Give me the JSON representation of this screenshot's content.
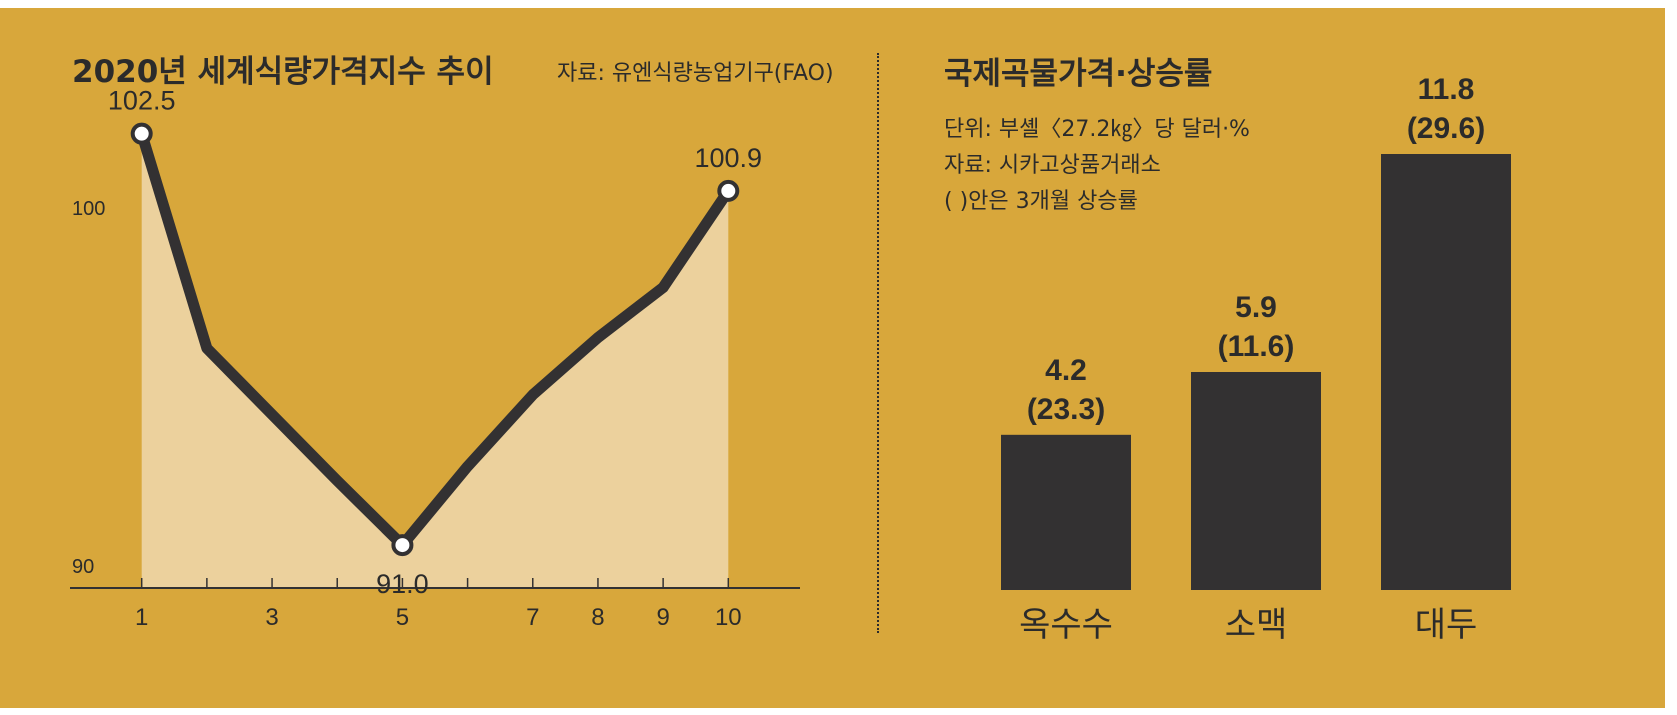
{
  "left_chart": {
    "title": "2020년 세계식량가격지수 추이",
    "source": "자료: 유엔식량농업기구(FAO)"
  },
  "right_chart": {
    "title": "국제곡물가격·상승률",
    "note_unit": "단위: 부셸〈27.2㎏〉당 달러·%",
    "note_source": "자료: 시카고상품거래소",
    "note_paren": "(   )안은 3개월 상승률"
  },
  "colors": {
    "background": "#d8a73b",
    "area_fill": "#ecd19d",
    "line": "#333132",
    "bar": "#333132",
    "text": "#2b2b2b"
  },
  "chart_data": [
    {
      "type": "line",
      "title": "2020년 세계식량가격지수 추이",
      "x": [
        1,
        2,
        4,
        5,
        6,
        7,
        8,
        9,
        10
      ],
      "y": [
        102.5,
        96.5,
        92.8,
        91.0,
        93.2,
        95.2,
        96.8,
        98.2,
        100.9
      ],
      "x_ticks": [
        1,
        3,
        5,
        7,
        8,
        9,
        10
      ],
      "y_ticks": [
        90,
        100
      ],
      "ylim": [
        89.8,
        104
      ],
      "xlim": [
        -0.1,
        11.1
      ],
      "annotations": [
        {
          "x": 1,
          "y": 102.5,
          "label": "102.5"
        },
        {
          "x": 5,
          "y": 91.0,
          "label": "91.0"
        },
        {
          "x": 10,
          "y": 100.9,
          "label": "100.9"
        }
      ],
      "grid": false,
      "area_fill": true
    },
    {
      "type": "bar",
      "title": "국제곡물가격·상승률",
      "categories": [
        "옥수수",
        "소맥",
        "대두"
      ],
      "values": [
        4.2,
        5.9,
        11.8
      ],
      "value_labels": [
        "4.2",
        "5.9",
        "11.8"
      ],
      "change_labels": [
        "(23.3)",
        "(11.6)",
        "(29.6)"
      ],
      "three_month_change": [
        23.3,
        11.6,
        29.6
      ],
      "unit": "단위: 부셸〈27.2㎏〉당 달러·%"
    }
  ]
}
